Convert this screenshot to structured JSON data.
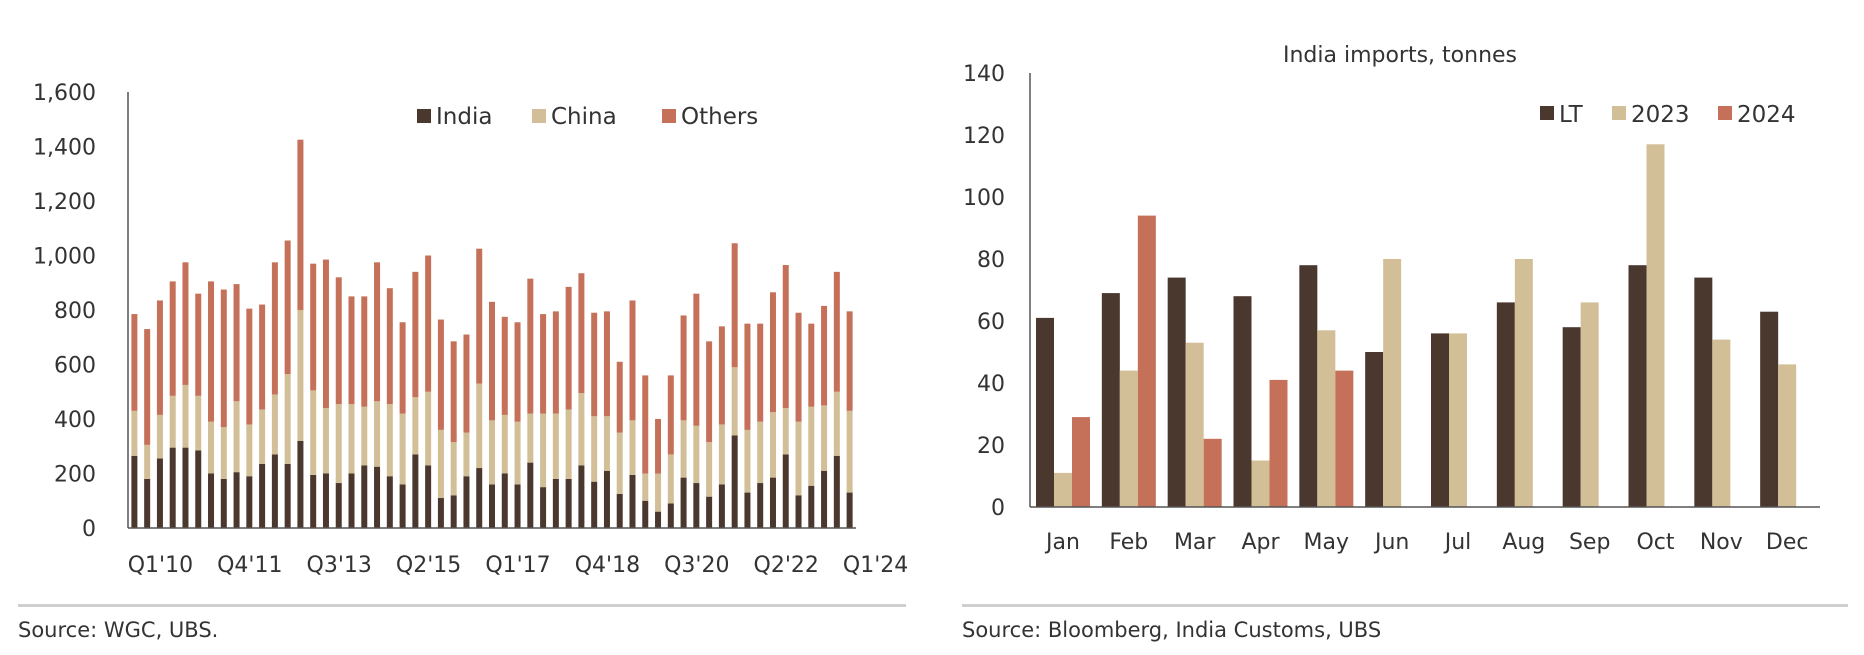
{
  "sources": {
    "left": "Source: WGC, UBS.",
    "right": "Source: Bloomberg, India Customs, UBS"
  },
  "colors": {
    "india": "#4a372e",
    "china": "#d2bf98",
    "others": "#c5715a",
    "lt": "#4a372e",
    "y2023": "#d2bf98",
    "y2024": "#c5715a"
  },
  "chart_data": [
    {
      "type": "bar",
      "stacked": true,
      "title": "",
      "ylim": [
        0,
        1600
      ],
      "yticks": [
        0,
        200,
        400,
        600,
        800,
        1000,
        1200,
        1400,
        1600
      ],
      "ytick_labels": [
        "0",
        "200",
        "400",
        "600",
        "800",
        "1,000",
        "1,200",
        "1,400",
        "1,600"
      ],
      "xtick_labels": [
        "Q1'10",
        "Q4'11",
        "Q3'13",
        "Q2'15",
        "Q1'17",
        "Q4'18",
        "Q3'20",
        "Q2'22",
        "Q1'24"
      ],
      "xtick_every": 7,
      "legend_position": "top",
      "series": [
        {
          "name": "India",
          "values": [
            265,
            180,
            255,
            295,
            295,
            285,
            200,
            180,
            205,
            190,
            235,
            270,
            235,
            320,
            195,
            200,
            165,
            200,
            230,
            225,
            190,
            160,
            270,
            230,
            110,
            120,
            190,
            220,
            160,
            200,
            160,
            240,
            150,
            180,
            180,
            230,
            170,
            210,
            125,
            195,
            100,
            60,
            90,
            185,
            165,
            115,
            160,
            340,
            130,
            165,
            185,
            270,
            120,
            155,
            210,
            265,
            130
          ]
        },
        {
          "name": "China",
          "values": [
            165,
            125,
            160,
            190,
            230,
            200,
            190,
            190,
            260,
            190,
            200,
            220,
            330,
            480,
            310,
            240,
            290,
            255,
            215,
            240,
            265,
            260,
            210,
            270,
            250,
            195,
            160,
            310,
            235,
            215,
            230,
            180,
            270,
            240,
            255,
            265,
            240,
            200,
            225,
            200,
            100,
            140,
            180,
            210,
            210,
            200,
            220,
            250,
            230,
            225,
            240,
            170,
            270,
            290,
            240,
            235,
            300
          ]
        },
        {
          "name": "Others",
          "values": [
            355,
            425,
            420,
            420,
            450,
            375,
            515,
            505,
            430,
            425,
            385,
            485,
            490,
            625,
            465,
            545,
            465,
            395,
            405,
            510,
            425,
            335,
            460,
            500,
            405,
            370,
            360,
            495,
            435,
            360,
            365,
            495,
            365,
            375,
            450,
            440,
            380,
            385,
            260,
            440,
            360,
            200,
            290,
            385,
            485,
            370,
            360,
            455,
            390,
            360,
            440,
            525,
            400,
            305,
            365,
            440,
            365
          ]
        }
      ]
    },
    {
      "type": "bar",
      "title": "India imports, tonnes",
      "ylim": [
        0,
        140
      ],
      "yticks": [
        0,
        20,
        40,
        60,
        80,
        100,
        120,
        140
      ],
      "categories": [
        "Jan",
        "Feb",
        "Mar",
        "Apr",
        "May",
        "Jun",
        "Jul",
        "Aug",
        "Sep",
        "Oct",
        "Nov",
        "Dec"
      ],
      "legend_position": "top-right",
      "series": [
        {
          "name": "LT",
          "values": [
            61,
            69,
            74,
            68,
            78,
            50,
            56,
            66,
            58,
            78,
            74,
            63
          ]
        },
        {
          "name": "2023",
          "values": [
            11,
            44,
            53,
            15,
            57,
            80,
            56,
            80,
            66,
            117,
            54,
            46
          ]
        },
        {
          "name": "2024",
          "values": [
            29,
            94,
            22,
            41,
            44,
            null,
            null,
            null,
            null,
            null,
            null,
            null
          ]
        }
      ]
    }
  ]
}
